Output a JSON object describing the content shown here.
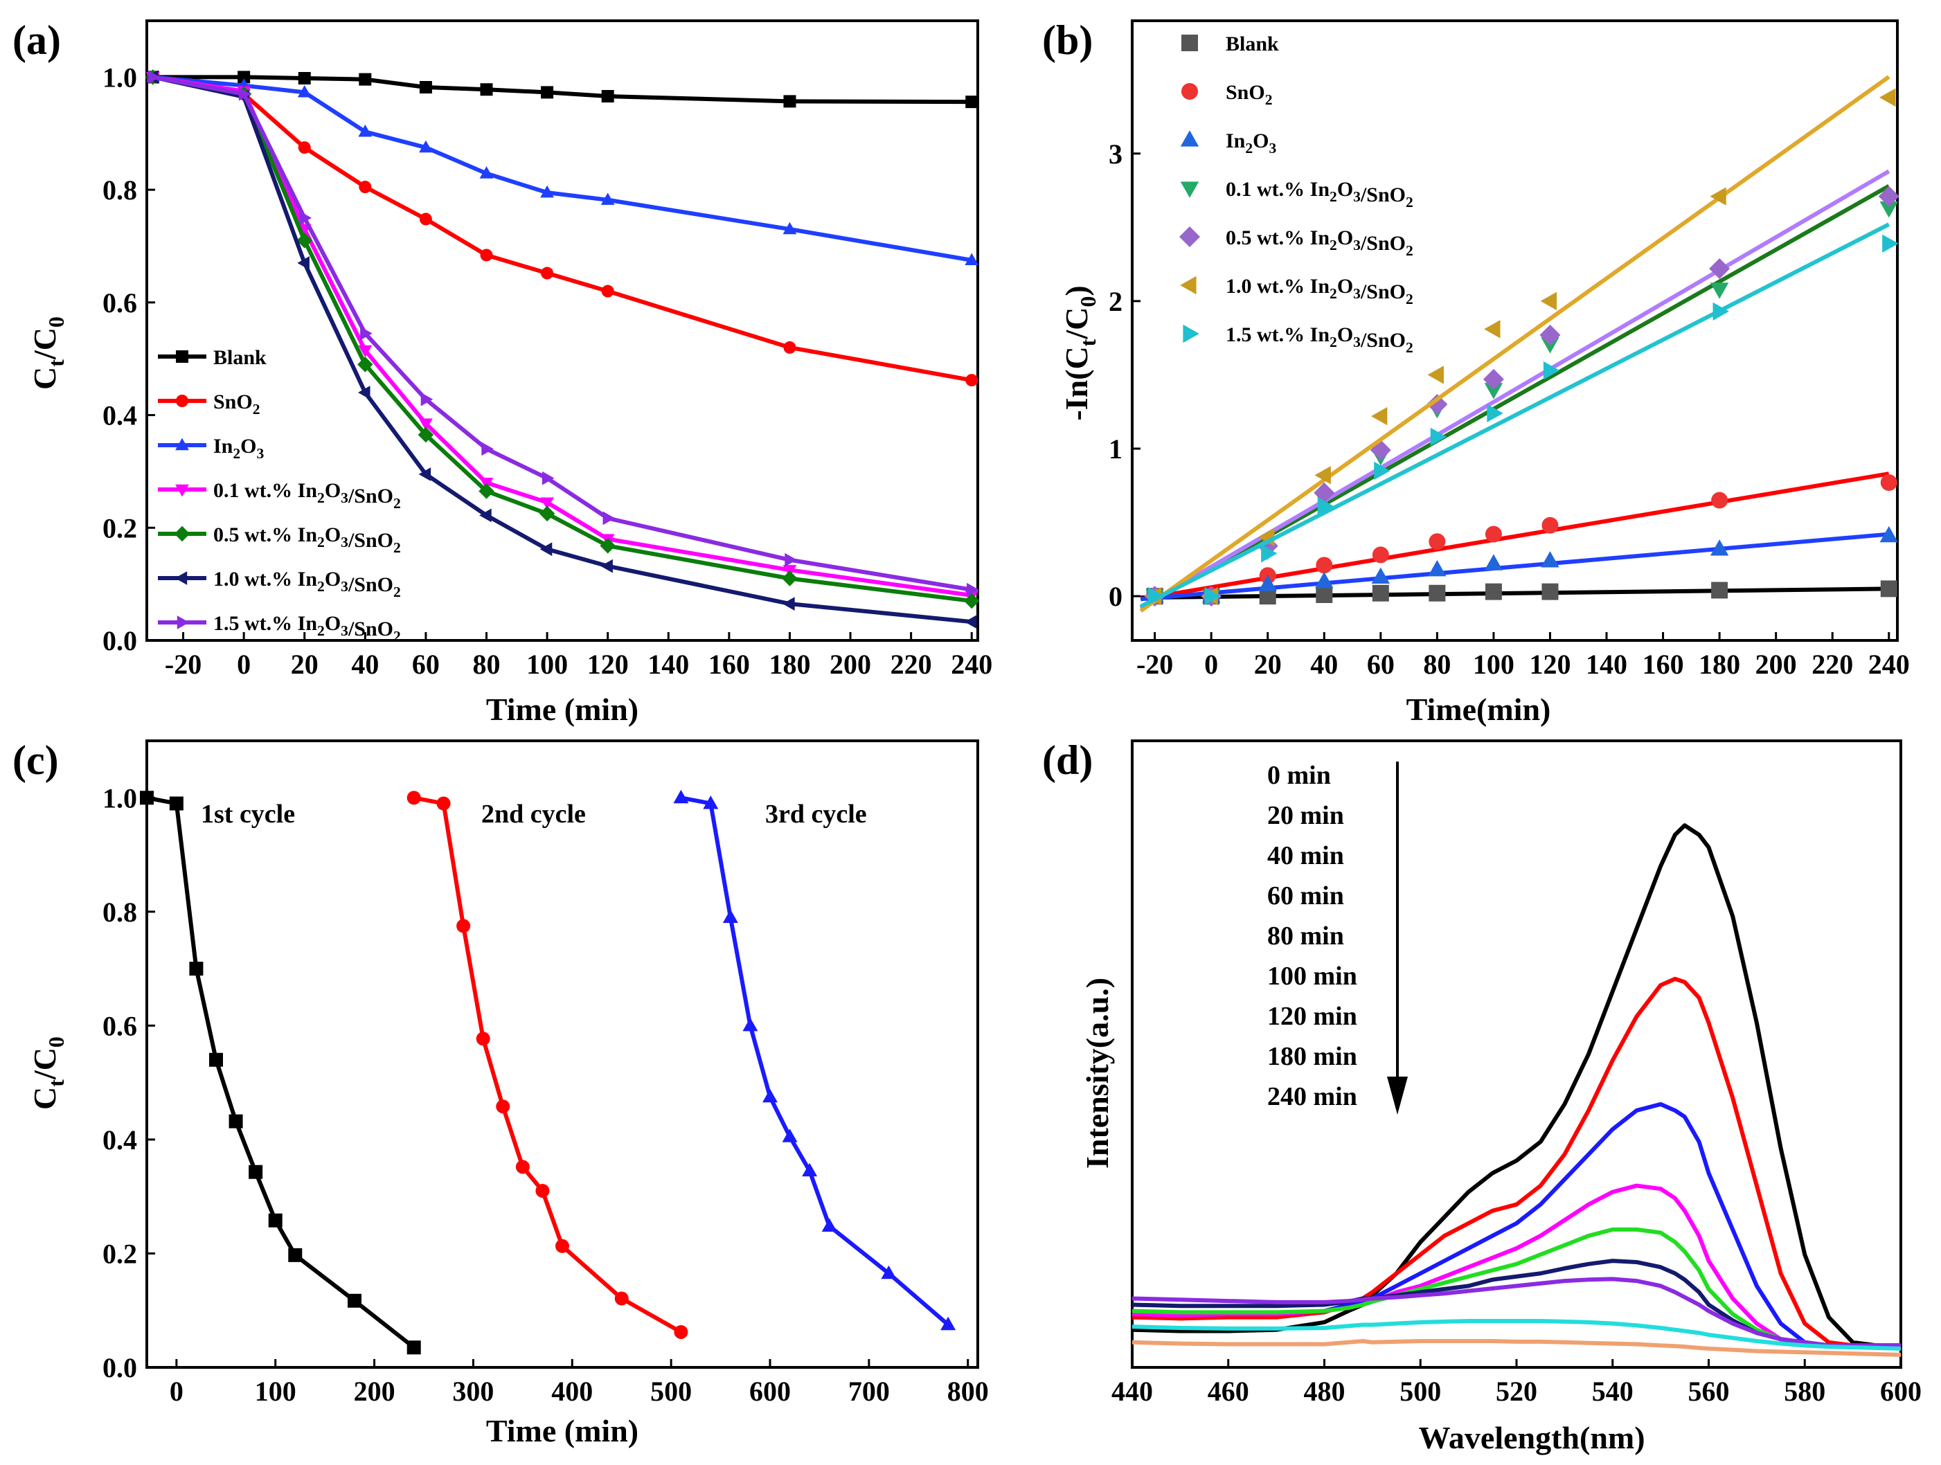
{
  "chart_data": [
    {
      "panel": "(a)",
      "type": "line",
      "xlabel": "Time (min)",
      "ylabel": "C_t/C_0",
      "xlim": [
        -32,
        242
      ],
      "ylim": [
        0,
        1.1
      ],
      "xticks": [
        -20,
        0,
        20,
        40,
        60,
        80,
        100,
        120,
        140,
        160,
        180,
        200,
        220,
        240
      ],
      "yticks": [
        0.0,
        0.2,
        0.4,
        0.6,
        0.8,
        1.0
      ],
      "legend_position": "bottom-left",
      "x": [
        -30,
        0,
        20,
        40,
        60,
        80,
        100,
        120,
        180,
        240
      ],
      "series": [
        {
          "name": "Blank",
          "color": "#000000",
          "marker": "square",
          "values": [
            1.0,
            1.0,
            0.998,
            0.996,
            0.982,
            0.978,
            0.973,
            0.966,
            0.957,
            0.956
          ]
        },
        {
          "name": "SnO2",
          "color": "#ff0000",
          "marker": "circle",
          "values": [
            1.0,
            0.97,
            0.875,
            0.805,
            0.748,
            0.684,
            0.652,
            0.62,
            0.52,
            0.462
          ]
        },
        {
          "name": "In2O3",
          "color": "#1f3fff",
          "marker": "triangle-up",
          "values": [
            1.0,
            0.985,
            0.973,
            0.903,
            0.875,
            0.829,
            0.795,
            0.782,
            0.73,
            0.675
          ]
        },
        {
          "name": "0.1 wt.% In2O3/SnO2",
          "color": "#ff00ff",
          "marker": "triangle-down",
          "values": [
            1.0,
            0.975,
            0.73,
            0.515,
            0.385,
            0.28,
            0.245,
            0.18,
            0.125,
            0.08
          ]
        },
        {
          "name": "0.5 wt.% In2O3/SnO2",
          "color": "#0a7d0a",
          "marker": "diamond",
          "values": [
            1.0,
            0.97,
            0.71,
            0.49,
            0.365,
            0.265,
            0.225,
            0.168,
            0.11,
            0.07
          ]
        },
        {
          "name": "1.0 wt.% In2O3/SnO2",
          "color": "#141a6e",
          "marker": "triangle-left",
          "values": [
            1.0,
            0.965,
            0.67,
            0.44,
            0.295,
            0.222,
            0.162,
            0.132,
            0.065,
            0.033
          ]
        },
        {
          "name": "1.5 wt.% In2O3/SnO2",
          "color": "#8a2be2",
          "marker": "triangle-right",
          "values": [
            1.0,
            0.97,
            0.75,
            0.545,
            0.428,
            0.34,
            0.288,
            0.217,
            0.143,
            0.09
          ]
        }
      ]
    },
    {
      "panel": "(b)",
      "type": "scatter",
      "xlabel": "Time(min)",
      "ylabel": "-In(C_t/C_0)",
      "xlim": [
        -28,
        243
      ],
      "ylim": [
        -0.3,
        3.9
      ],
      "xticks": [
        -20,
        0,
        20,
        40,
        60,
        80,
        100,
        120,
        140,
        160,
        180,
        200,
        220,
        240
      ],
      "yticks": [
        0,
        1,
        2,
        3
      ],
      "legend_position": "top-left",
      "x": [
        -20,
        0,
        20,
        40,
        60,
        80,
        100,
        120,
        180,
        240
      ],
      "series": [
        {
          "name": "Blank",
          "color": "#555555",
          "marker": "square",
          "values": [
            0,
            0,
            0,
            0.01,
            0.02,
            0.02,
            0.03,
            0.03,
            0.04,
            0.05
          ],
          "fit": [
            [
              -25,
              -0.01
            ],
            [
              240,
              0.05
            ]
          ]
        },
        {
          "name": "SnO2",
          "color": "#ee3333",
          "marker": "circle",
          "values": [
            0,
            0,
            0.14,
            0.21,
            0.28,
            0.37,
            0.42,
            0.48,
            0.65,
            0.77
          ],
          "fit": [
            [
              -25,
              -0.02
            ],
            [
              240,
              0.83
            ]
          ]
        },
        {
          "name": "In2O3",
          "color": "#2266dd",
          "marker": "triangle-up",
          "values": [
            0,
            0,
            0.08,
            0.1,
            0.13,
            0.18,
            0.22,
            0.24,
            0.32,
            0.41
          ],
          "fit": [
            [
              -25,
              -0.02
            ],
            [
              240,
              0.42
            ]
          ]
        },
        {
          "name": "0.1 wt.% In2O3/SnO2",
          "color": "#22aa66",
          "marker": "triangle-down",
          "values": [
            0,
            0,
            0.31,
            0.66,
            0.95,
            1.27,
            1.4,
            1.71,
            2.08,
            2.63
          ],
          "fit": [
            [
              -25,
              -0.08
            ],
            [
              240,
              2.78
            ]
          ]
        },
        {
          "name": "0.5 wt.% In2O3/SnO2",
          "color": "#9966cc",
          "marker": "diamond",
          "values": [
            0,
            0,
            0.34,
            0.7,
            0.99,
            1.3,
            1.47,
            1.77,
            2.22,
            2.71
          ],
          "fit": [
            [
              -25,
              -0.08
            ],
            [
              240,
              2.88
            ]
          ]
        },
        {
          "name": "1.0 wt.% In2O3/SnO2",
          "color": "#c89a1e",
          "marker": "triangle-left",
          "values": [
            0,
            0,
            0.4,
            0.82,
            1.22,
            1.5,
            1.81,
            2.0,
            2.71,
            3.38
          ],
          "fit": [
            [
              -25,
              -0.1
            ],
            [
              240,
              3.52
            ]
          ]
        },
        {
          "name": "1.5 wt.% In2O3/SnO2",
          "color": "#1fbfcf",
          "marker": "triangle-right",
          "values": [
            0,
            0,
            0.29,
            0.61,
            0.85,
            1.08,
            1.24,
            1.53,
            1.93,
            2.39
          ],
          "fit": [
            [
              -25,
              -0.07
            ],
            [
              240,
              2.52
            ]
          ]
        }
      ],
      "fit_colors": {
        "Blank": "#000000",
        "SnO2": "#ff0000",
        "In2O3": "#1f3fff",
        "0.1 wt.% In2O3/SnO2": "#1a7a1a",
        "0.5 wt.% In2O3/SnO2": "#b07cff",
        "1.0 wt.% In2O3/SnO2": "#e0a82a",
        "1.5 wt.% In2O3/SnO2": "#22c3cf"
      }
    },
    {
      "panel": "(c)",
      "type": "line",
      "xlabel": "Time (min)",
      "ylabel": "C_t/C_0",
      "xlim": [
        -30,
        810
      ],
      "ylim": [
        0,
        1.1
      ],
      "xticks": [
        0,
        100,
        200,
        300,
        400,
        500,
        600,
        700,
        800
      ],
      "yticks": [
        0.0,
        0.2,
        0.4,
        0.6,
        0.8,
        1.0
      ],
      "annotations": [
        "1st cycle",
        "2nd cycle",
        "3rd cycle"
      ],
      "series": [
        {
          "name": "1st cycle",
          "color": "#000000",
          "marker": "square",
          "x": [
            -30,
            0,
            20,
            40,
            60,
            80,
            100,
            120,
            180,
            240
          ],
          "values": [
            1.0,
            0.99,
            0.7,
            0.54,
            0.432,
            0.343,
            0.258,
            0.197,
            0.117,
            0.035
          ]
        },
        {
          "name": "2nd cycle",
          "color": "#ff0000",
          "marker": "circle",
          "x": [
            240,
            270,
            290,
            310,
            330,
            350,
            370,
            390,
            450,
            510
          ],
          "values": [
            1.0,
            0.99,
            0.775,
            0.577,
            0.458,
            0.352,
            0.31,
            0.213,
            0.121,
            0.062
          ]
        },
        {
          "name": "3rd cycle",
          "color": "#1a1aff",
          "marker": "triangle-up",
          "x": [
            510,
            540,
            560,
            580,
            600,
            620,
            640,
            660,
            720,
            780
          ],
          "values": [
            1.0,
            0.99,
            0.79,
            0.6,
            0.475,
            0.405,
            0.345,
            0.248,
            0.165,
            0.075
          ]
        }
      ]
    },
    {
      "panel": "(d)",
      "type": "line",
      "xlabel": "Wavelength(nm)",
      "ylabel": "Intensity(a.u.)",
      "xlim": [
        440,
        600
      ],
      "ylim": [
        0,
        1
      ],
      "xticks": [
        440,
        460,
        480,
        500,
        520,
        540,
        560,
        580,
        600
      ],
      "legend_position": "top-left",
      "legend_title_arrow": "down",
      "x": [
        440,
        450,
        460,
        470,
        480,
        485,
        488,
        490,
        495,
        500,
        505,
        510,
        515,
        520,
        525,
        530,
        535,
        540,
        545,
        550,
        553,
        555,
        558,
        560,
        565,
        570,
        575,
        580,
        585,
        590,
        595,
        600
      ],
      "series": [
        {
          "name": "0 min",
          "color": "#000000",
          "values": [
            0.06,
            0.058,
            0.058,
            0.06,
            0.072,
            0.09,
            0.1,
            0.115,
            0.15,
            0.2,
            0.24,
            0.28,
            0.31,
            0.33,
            0.36,
            0.42,
            0.5,
            0.6,
            0.7,
            0.8,
            0.85,
            0.865,
            0.85,
            0.83,
            0.72,
            0.55,
            0.35,
            0.18,
            0.08,
            0.04,
            0.035,
            0.035
          ]
        },
        {
          "name": "20 min",
          "color": "#ff0000",
          "values": [
            0.08,
            0.078,
            0.08,
            0.08,
            0.088,
            0.1,
            0.11,
            0.12,
            0.15,
            0.18,
            0.21,
            0.23,
            0.25,
            0.26,
            0.29,
            0.34,
            0.41,
            0.49,
            0.56,
            0.61,
            0.62,
            0.615,
            0.59,
            0.55,
            0.43,
            0.29,
            0.15,
            0.07,
            0.04,
            0.035,
            0.035,
            0.035
          ]
        },
        {
          "name": "40 min",
          "color": "#1a1aff",
          "values": [
            0.085,
            0.083,
            0.085,
            0.085,
            0.09,
            0.1,
            0.105,
            0.11,
            0.13,
            0.15,
            0.17,
            0.19,
            0.21,
            0.23,
            0.26,
            0.3,
            0.34,
            0.38,
            0.41,
            0.42,
            0.41,
            0.4,
            0.36,
            0.31,
            0.22,
            0.13,
            0.07,
            0.04,
            0.035,
            0.035,
            0.035,
            0.035
          ]
        },
        {
          "name": "60 min",
          "color": "#ff00ff",
          "values": [
            0.085,
            0.083,
            0.085,
            0.085,
            0.09,
            0.095,
            0.1,
            0.105,
            0.12,
            0.13,
            0.145,
            0.16,
            0.175,
            0.19,
            0.21,
            0.235,
            0.26,
            0.28,
            0.29,
            0.285,
            0.27,
            0.25,
            0.21,
            0.17,
            0.11,
            0.07,
            0.045,
            0.04,
            0.035,
            0.035,
            0.035,
            0.035
          ]
        },
        {
          "name": "80 min",
          "color": "#22dd22",
          "values": [
            0.09,
            0.088,
            0.088,
            0.088,
            0.09,
            0.095,
            0.1,
            0.105,
            0.115,
            0.125,
            0.135,
            0.145,
            0.155,
            0.165,
            0.18,
            0.195,
            0.21,
            0.22,
            0.22,
            0.215,
            0.2,
            0.185,
            0.155,
            0.125,
            0.085,
            0.06,
            0.045,
            0.04,
            0.035,
            0.035,
            0.035,
            0.035
          ]
        },
        {
          "name": "100 min",
          "color": "#141a6e",
          "values": [
            0.1,
            0.098,
            0.098,
            0.098,
            0.1,
            0.105,
            0.11,
            0.11,
            0.115,
            0.12,
            0.125,
            0.13,
            0.14,
            0.145,
            0.15,
            0.158,
            0.165,
            0.17,
            0.168,
            0.16,
            0.15,
            0.14,
            0.12,
            0.1,
            0.075,
            0.055,
            0.045,
            0.04,
            0.035,
            0.035,
            0.035,
            0.035
          ]
        },
        {
          "name": "120 min",
          "color": "#8a2be2",
          "values": [
            0.11,
            0.108,
            0.106,
            0.104,
            0.104,
            0.106,
            0.108,
            0.11,
            0.112,
            0.115,
            0.118,
            0.122,
            0.126,
            0.13,
            0.134,
            0.138,
            0.14,
            0.141,
            0.138,
            0.13,
            0.12,
            0.112,
            0.1,
            0.09,
            0.07,
            0.055,
            0.045,
            0.04,
            0.035,
            0.035,
            0.035,
            0.035
          ]
        },
        {
          "name": "180 min",
          "color": "#22dddd",
          "values": [
            0.065,
            0.063,
            0.062,
            0.062,
            0.063,
            0.066,
            0.068,
            0.068,
            0.07,
            0.072,
            0.073,
            0.074,
            0.074,
            0.074,
            0.074,
            0.073,
            0.072,
            0.07,
            0.067,
            0.063,
            0.06,
            0.058,
            0.055,
            0.052,
            0.047,
            0.042,
            0.038,
            0.035,
            0.033,
            0.032,
            0.031,
            0.03
          ]
        },
        {
          "name": "240 min",
          "color": "#f0a070",
          "values": [
            0.04,
            0.038,
            0.037,
            0.037,
            0.037,
            0.04,
            0.042,
            0.04,
            0.041,
            0.042,
            0.042,
            0.042,
            0.042,
            0.041,
            0.041,
            0.04,
            0.039,
            0.038,
            0.037,
            0.035,
            0.034,
            0.033,
            0.031,
            0.03,
            0.028,
            0.026,
            0.025,
            0.024,
            0.023,
            0.022,
            0.021,
            0.02
          ]
        }
      ]
    }
  ]
}
